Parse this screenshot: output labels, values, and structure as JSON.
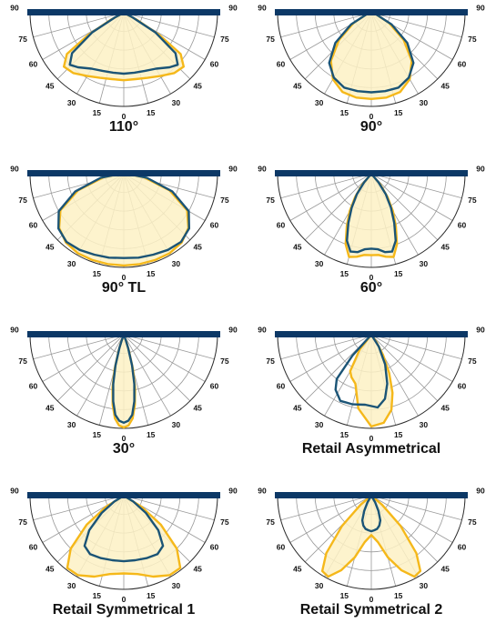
{
  "diagrams": [
    {
      "label": "110°",
      "yellow": [
        [
          0,
          0.72
        ],
        [
          10,
          0.72
        ],
        [
          20,
          0.74
        ],
        [
          30,
          0.78
        ],
        [
          40,
          0.84
        ],
        [
          48,
          0.86
        ],
        [
          54,
          0.75
        ],
        [
          58,
          0.45
        ],
        [
          62,
          0.15
        ],
        [
          66,
          0
        ]
      ],
      "blue": [
        [
          0,
          0.65
        ],
        [
          10,
          0.65
        ],
        [
          20,
          0.66
        ],
        [
          30,
          0.69
        ],
        [
          40,
          0.76
        ],
        [
          46,
          0.8
        ],
        [
          52,
          0.7
        ],
        [
          58,
          0.4
        ],
        [
          62,
          0.1
        ],
        [
          65,
          0
        ]
      ]
    },
    {
      "label": "90°",
      "yellow": [
        [
          0,
          0.92
        ],
        [
          10,
          0.92
        ],
        [
          20,
          0.9
        ],
        [
          30,
          0.82
        ],
        [
          40,
          0.67
        ],
        [
          50,
          0.45
        ],
        [
          60,
          0.22
        ],
        [
          70,
          0.06
        ],
        [
          75,
          0
        ]
      ],
      "blue": [
        [
          0,
          0.85
        ],
        [
          10,
          0.85
        ],
        [
          20,
          0.85
        ],
        [
          30,
          0.8
        ],
        [
          40,
          0.7
        ],
        [
          50,
          0.5
        ],
        [
          60,
          0.25
        ],
        [
          70,
          0.06
        ],
        [
          75,
          0
        ]
      ]
    },
    {
      "label": "90° TL",
      "yellow": [
        [
          0,
          0.98
        ],
        [
          10,
          0.98
        ],
        [
          20,
          0.98
        ],
        [
          30,
          0.98
        ],
        [
          40,
          0.96
        ],
        [
          50,
          0.9
        ],
        [
          60,
          0.78
        ],
        [
          70,
          0.52
        ],
        [
          80,
          0.22
        ],
        [
          88,
          0.04
        ],
        [
          90,
          0
        ]
      ],
      "blue": [
        [
          0,
          0.9
        ],
        [
          10,
          0.91
        ],
        [
          20,
          0.92
        ],
        [
          30,
          0.94
        ],
        [
          40,
          0.95
        ],
        [
          50,
          0.91
        ],
        [
          60,
          0.8
        ],
        [
          70,
          0.55
        ],
        [
          80,
          0.25
        ],
        [
          88,
          0.04
        ],
        [
          90,
          0
        ]
      ]
    },
    {
      "label": "60°",
      "yellow": [
        [
          0,
          0.87
        ],
        [
          5,
          0.87
        ],
        [
          10,
          0.9
        ],
        [
          15,
          0.92
        ],
        [
          20,
          0.8
        ],
        [
          25,
          0.62
        ],
        [
          30,
          0.46
        ],
        [
          35,
          0.3
        ],
        [
          40,
          0.15
        ],
        [
          45,
          0
        ]
      ],
      "blue": [
        [
          0,
          0.8
        ],
        [
          5,
          0.81
        ],
        [
          10,
          0.85
        ],
        [
          15,
          0.86
        ],
        [
          20,
          0.76
        ],
        [
          25,
          0.58
        ],
        [
          30,
          0.42
        ],
        [
          35,
          0.27
        ],
        [
          40,
          0.12
        ],
        [
          44,
          0
        ]
      ]
    },
    {
      "label": "30°",
      "yellow": [
        [
          0,
          0.99
        ],
        [
          3,
          0.97
        ],
        [
          6,
          0.9
        ],
        [
          9,
          0.76
        ],
        [
          12,
          0.58
        ],
        [
          15,
          0.38
        ],
        [
          18,
          0.18
        ],
        [
          20,
          0.08
        ],
        [
          22,
          0
        ]
      ],
      "blue": [
        [
          0,
          0.94
        ],
        [
          3,
          0.92
        ],
        [
          6,
          0.86
        ],
        [
          9,
          0.72
        ],
        [
          12,
          0.54
        ],
        [
          15,
          0.34
        ],
        [
          18,
          0.15
        ],
        [
          20,
          0.06
        ],
        [
          21,
          0
        ]
      ]
    },
    {
      "label": "Retail Asymmetrical",
      "yellow": [
        [
          -40,
          0
        ],
        [
          -38,
          0.2
        ],
        [
          -30,
          0.45
        ],
        [
          -25,
          0.5
        ],
        [
          -18,
          0.55
        ],
        [
          -10,
          0.8
        ],
        [
          0,
          0.98
        ],
        [
          8,
          0.95
        ],
        [
          15,
          0.83
        ],
        [
          20,
          0.66
        ],
        [
          25,
          0.45
        ],
        [
          30,
          0.25
        ],
        [
          35,
          0.1
        ],
        [
          40,
          0
        ]
      ],
      "blue": [
        [
          -45,
          0
        ],
        [
          -42,
          0.3
        ],
        [
          -38,
          0.6
        ],
        [
          -33,
          0.7
        ],
        [
          -25,
          0.78
        ],
        [
          -15,
          0.77
        ],
        [
          -5,
          0.75
        ],
        [
          5,
          0.78
        ],
        [
          12,
          0.7
        ],
        [
          18,
          0.55
        ],
        [
          25,
          0.35
        ],
        [
          32,
          0.15
        ],
        [
          40,
          0
        ]
      ]
    },
    {
      "label": "Retail Symmetrical 1",
      "yellow": [
        [
          0,
          0.83
        ],
        [
          10,
          0.85
        ],
        [
          20,
          0.92
        ],
        [
          30,
          0.98
        ],
        [
          38,
          0.98
        ],
        [
          45,
          0.8
        ],
        [
          52,
          0.5
        ],
        [
          58,
          0.22
        ],
        [
          62,
          0
        ]
      ],
      "blue": [
        [
          0,
          0.7
        ],
        [
          10,
          0.7
        ],
        [
          20,
          0.71
        ],
        [
          30,
          0.72
        ],
        [
          38,
          0.68
        ],
        [
          45,
          0.52
        ],
        [
          52,
          0.3
        ],
        [
          58,
          0.12
        ],
        [
          62,
          0
        ]
      ]
    },
    {
      "label": "Retail Symmetrical 2",
      "yellow": [
        [
          0,
          0.42
        ],
        [
          8,
          0.5
        ],
        [
          15,
          0.68
        ],
        [
          22,
          0.86
        ],
        [
          28,
          0.98
        ],
        [
          33,
          0.96
        ],
        [
          38,
          0.78
        ],
        [
          44,
          0.45
        ],
        [
          50,
          0.15
        ],
        [
          55,
          0
        ]
      ],
      "blue": [
        [
          0,
          0.38
        ],
        [
          5,
          0.37
        ],
        [
          10,
          0.36
        ],
        [
          15,
          0.33
        ],
        [
          20,
          0.28
        ],
        [
          25,
          0.18
        ],
        [
          30,
          0.08
        ],
        [
          33,
          0
        ]
      ]
    }
  ],
  "tick_labels": [
    "0",
    "15",
    "15",
    "30",
    "30",
    "45",
    "45",
    "60",
    "60",
    "75",
    "75",
    "90",
    "90"
  ]
}
